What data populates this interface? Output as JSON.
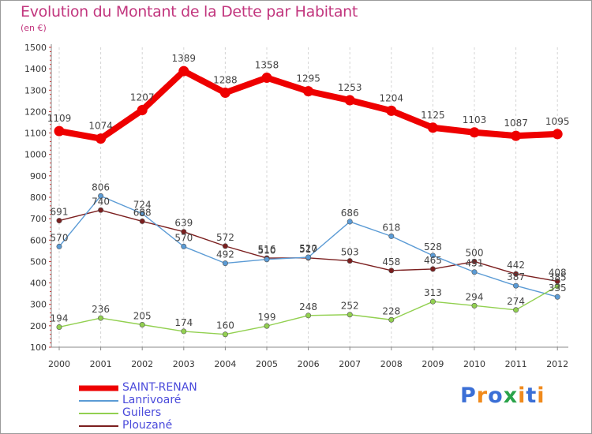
{
  "chart_data": {
    "type": "line",
    "title": "Evolution du Montant de la Dette par Habitant",
    "subtitle": "(en €)",
    "categories": [
      "2000",
      "2001",
      "2002",
      "2003",
      "2004",
      "2005",
      "2006",
      "2007",
      "2008",
      "2009",
      "2010",
      "2011",
      "2012"
    ],
    "ylim": [
      100,
      1500
    ],
    "yticks": [
      100,
      200,
      300,
      400,
      500,
      600,
      700,
      800,
      900,
      1000,
      1100,
      1200,
      1300,
      1400,
      1500
    ],
    "grid": "vertical",
    "legend_position": "bottom-left",
    "series": [
      {
        "name": "SAINT-RENAN",
        "color": "#ee0000",
        "values": [
          1109,
          1074,
          1207,
          1389,
          1288,
          1358,
          1295,
          1253,
          1204,
          1125,
          1103,
          1087,
          1095
        ]
      },
      {
        "name": "Lanrivoaré",
        "color": "#5b9bd5",
        "values": [
          570,
          806,
          724,
          570,
          492,
          510,
          520,
          686,
          618,
          528,
          451,
          387,
          335
        ]
      },
      {
        "name": "Guilers",
        "color": "#92d050",
        "values": [
          194,
          236,
          205,
          174,
          160,
          199,
          248,
          252,
          228,
          313,
          294,
          274,
          385
        ]
      },
      {
        "name": "Plouzané",
        "color": "#7b1f1f",
        "values": [
          691,
          740,
          688,
          639,
          572,
          516,
          517,
          503,
          458,
          465,
          500,
          442,
          408
        ]
      }
    ]
  },
  "logo": {
    "text": "Proxiti",
    "letters": [
      "P",
      "r",
      "o",
      "x",
      "i",
      "t",
      "i"
    ],
    "colors": [
      "#3b6fd6",
      "#f08a1c",
      "#3b6fd6",
      "#2aa34a",
      "#f08a1c",
      "#3b6fd6",
      "#f08a1c"
    ]
  }
}
